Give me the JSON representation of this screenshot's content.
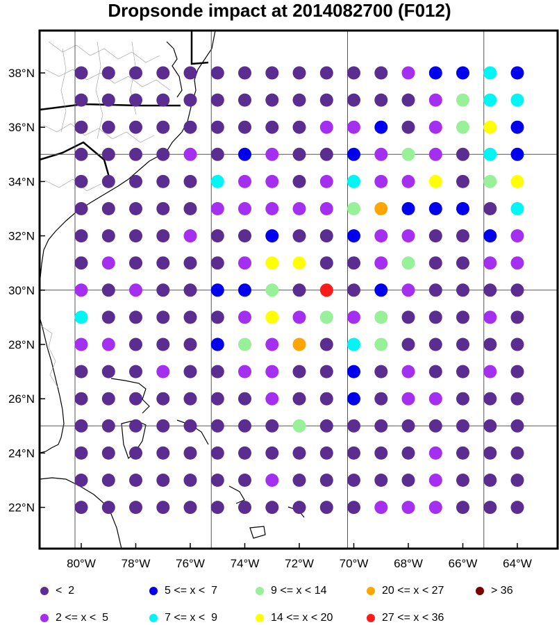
{
  "title": "Dropsonde impact at 2014082700 (F012)",
  "chart_data": {
    "type": "scatter",
    "lon_labels": [
      "80°W",
      "78°W",
      "76°W",
      "74°W",
      "72°W",
      "70°W",
      "68°W",
      "66°W",
      "64°W"
    ],
    "lat_labels": [
      "38°N",
      "36°N",
      "34°N",
      "32°N",
      "30°N",
      "28°N",
      "26°N",
      "24°N",
      "22°N"
    ],
    "lons": [
      -80,
      -79,
      -78,
      -77,
      -76,
      -75,
      -74,
      -73,
      -72,
      -71,
      -70,
      -69,
      -68,
      -67,
      -66,
      -65,
      -64
    ],
    "lats": [
      38,
      37,
      36,
      35,
      34,
      33,
      32,
      31,
      30,
      29,
      28,
      27,
      26,
      25,
      24,
      23,
      22
    ],
    "categories": [
      "< 2",
      "2 <= x <  5",
      "5 <= x <  7",
      "7 <= x <  9",
      "9 <= x < 14",
      "14 <= x < 20",
      "20 <= x < 27",
      "27 <= x < 36",
      "> 36"
    ],
    "colors": {
      "0": "#5b2d91",
      "1": "#a52ff0",
      "2": "#0000ee",
      "3": "#00f5f5",
      "4": "#98f098",
      "5": "#ffff00",
      "6": "#ffa500",
      "7": "#ff1a1a",
      "8": "#7a0000"
    },
    "grid": [
      "00000000000012232",
      "00000000000001433",
      "00000000011201452",
      "00001021002141032",
      "00000311013115045",
      "00000111114622203",
      "00001002002110021",
      "01000015500140011",
      "10100224070210000",
      "30000015141400010",
      "11000241603400000",
      "00010011002010010",
      "00000001002011000",
      "00000000400000000",
      "00000000000001000",
      "00000001000001000",
      "00000000000111000"
    ]
  },
  "legend": {
    "items": [
      {
        "label": "<  2",
        "cls": "0"
      },
      {
        "label": "5 <= x <  7",
        "cls": "2"
      },
      {
        "label": "9 <= x < 14",
        "cls": "4"
      },
      {
        "label": "20 <= x < 27",
        "cls": "6"
      },
      {
        "label": "> 36",
        "cls": "8"
      },
      {
        "label": "2 <= x <  5",
        "cls": "1"
      },
      {
        "label": "7 <= x <  9",
        "cls": "3"
      },
      {
        "label": "14 <= x < 20",
        "cls": "5"
      },
      {
        "label": "27 <= x < 36",
        "cls": "7"
      }
    ]
  }
}
